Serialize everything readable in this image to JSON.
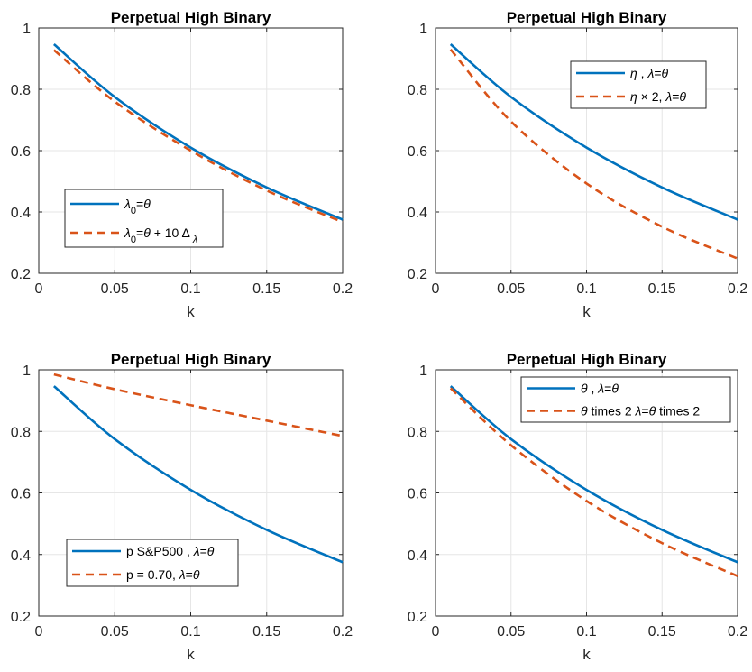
{
  "chart_data": [
    {
      "type": "line",
      "title": "Perpetual High Binary",
      "xlabel": "k",
      "ylabel": "",
      "xlim": [
        0,
        0.2
      ],
      "ylim": [
        0.2,
        1
      ],
      "xticks": [
        "0",
        "0.05",
        "0.1",
        "0.15",
        "0.2"
      ],
      "yticks": [
        "0.2",
        "0.4",
        "0.6",
        "0.8",
        "1"
      ],
      "grid": true,
      "legend_position": "lower-left",
      "x": [
        0.01,
        0.05,
        0.1,
        0.15,
        0.2
      ],
      "series": [
        {
          "name": "λ0=θ",
          "color": "#0072bd",
          "style": "solid",
          "values": [
            0.947,
            0.775,
            0.61,
            0.48,
            0.375
          ]
        },
        {
          "name": "λ0=θ + 10 Δλ",
          "color": "#d95319",
          "style": "dashed",
          "values": [
            0.928,
            0.76,
            0.6,
            0.47,
            0.367
          ]
        }
      ]
    },
    {
      "type": "line",
      "title": "Perpetual High Binary",
      "xlabel": "k",
      "ylabel": "",
      "xlim": [
        0,
        0.2
      ],
      "ylim": [
        0.2,
        1
      ],
      "xticks": [
        "0",
        "0.05",
        "0.1",
        "0.15",
        "0.2"
      ],
      "yticks": [
        "0.2",
        "0.4",
        "0.6",
        "0.8",
        "1"
      ],
      "grid": true,
      "legend_position": "top-right",
      "x": [
        0.01,
        0.05,
        0.1,
        0.15,
        0.2
      ],
      "series": [
        {
          "name": "η , λ=θ",
          "color": "#0072bd",
          "style": "solid",
          "values": [
            0.947,
            0.775,
            0.61,
            0.48,
            0.375
          ]
        },
        {
          "name": "η × 2, λ=θ",
          "color": "#d95319",
          "style": "dashed",
          "values": [
            0.93,
            0.695,
            0.493,
            0.352,
            0.248
          ]
        }
      ]
    },
    {
      "type": "line",
      "title": "Perpetual High Binary",
      "xlabel": "k",
      "ylabel": "",
      "xlim": [
        0,
        0.2
      ],
      "ylim": [
        0.2,
        1
      ],
      "xticks": [
        "0",
        "0.05",
        "0.1",
        "0.15",
        "0.2"
      ],
      "yticks": [
        "0.2",
        "0.4",
        "0.6",
        "0.8",
        "1"
      ],
      "grid": true,
      "legend_position": "lower-left",
      "x": [
        0.01,
        0.05,
        0.1,
        0.15,
        0.2
      ],
      "series": [
        {
          "name": "p S&P500 , λ=θ",
          "color": "#0072bd",
          "style": "solid",
          "values": [
            0.947,
            0.775,
            0.61,
            0.48,
            0.375
          ]
        },
        {
          "name": "p = 0.70, λ=θ",
          "color": "#d95319",
          "style": "dashed",
          "values": [
            0.985,
            0.937,
            0.885,
            0.835,
            0.785
          ]
        }
      ]
    },
    {
      "type": "line",
      "title": "Perpetual High Binary",
      "xlabel": "k",
      "ylabel": "",
      "xlim": [
        0,
        0.2
      ],
      "ylim": [
        0.2,
        1
      ],
      "xticks": [
        "0",
        "0.05",
        "0.1",
        "0.15",
        "0.2"
      ],
      "yticks": [
        "0.2",
        "0.4",
        "0.6",
        "0.8",
        "1"
      ],
      "grid": true,
      "legend_position": "top-right",
      "x": [
        0.01,
        0.05,
        0.1,
        0.15,
        0.2
      ],
      "series": [
        {
          "name": "θ , λ=θ",
          "color": "#0072bd",
          "style": "solid",
          "values": [
            0.947,
            0.775,
            0.61,
            0.48,
            0.375
          ]
        },
        {
          "name": "θ times 2 λ=θ times 2",
          "color": "#d95319",
          "style": "dashed",
          "values": [
            0.94,
            0.755,
            0.574,
            0.437,
            0.33
          ]
        }
      ]
    }
  ]
}
